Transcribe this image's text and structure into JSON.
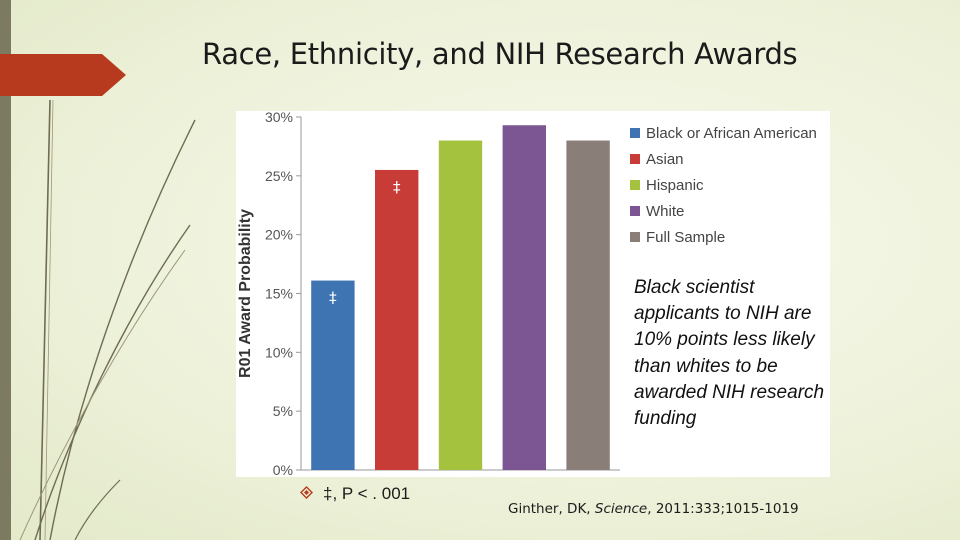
{
  "slide": {
    "title": "Race, Ethnicity, and NIH Research Awards",
    "callout": "Black scientist applicants to NIH are 10% points less likely than whites to be awarded NIH research funding",
    "footnote": "‡, P < . 001",
    "citation_author": "Ginther, DK, ",
    "citation_journal": "Science",
    "citation_rest": ", 2011:333;1015-1019",
    "accent_color": "#b83a1e",
    "sidebar_color": "#7d7a62"
  },
  "chart_data": {
    "type": "bar",
    "ylabel": "R01 Award Probability",
    "ylim": [
      0,
      30
    ],
    "yticks": [
      0,
      5,
      10,
      15,
      20,
      25,
      30
    ],
    "ytick_labels": [
      "0%",
      "5%",
      "10%",
      "15%",
      "20%",
      "25%",
      "30%"
    ],
    "categories": [
      "Black or African American",
      "Asian",
      "Hispanic",
      "White",
      "Full Sample"
    ],
    "values": [
      16.1,
      25.5,
      28.0,
      29.3,
      28.0
    ],
    "colors": [
      "#3e74b2",
      "#c83c38",
      "#a4c23e",
      "#7b5693",
      "#8a7e79"
    ],
    "bar_marks": [
      "‡",
      "‡",
      "",
      "",
      ""
    ],
    "legend_position": "right",
    "grid": false
  }
}
